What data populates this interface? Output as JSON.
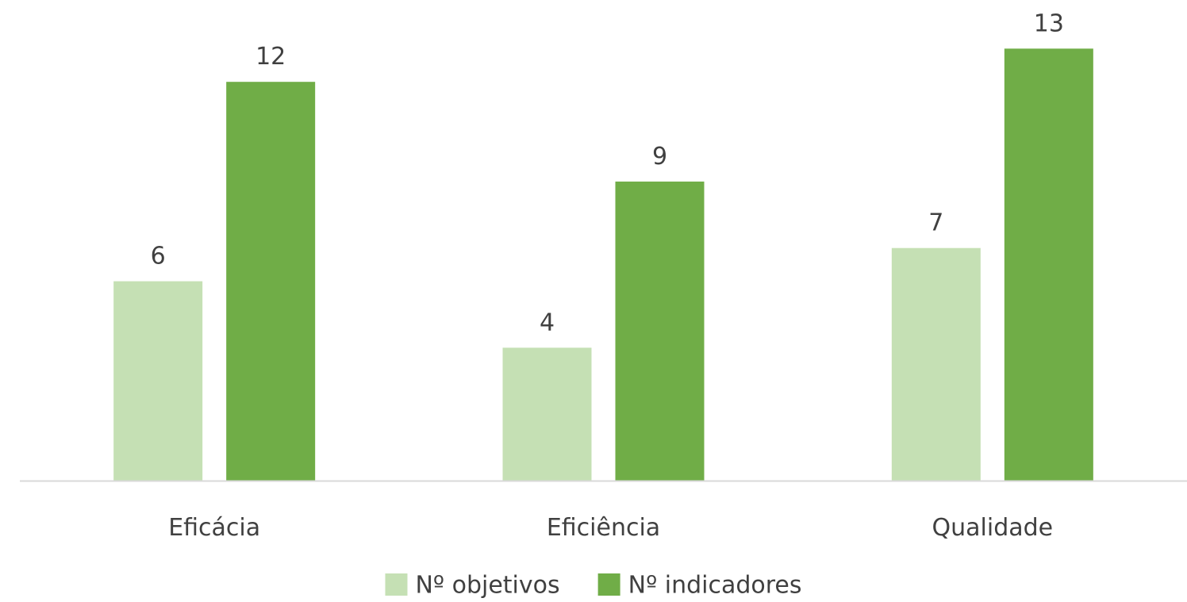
{
  "chart_data": {
    "type": "bar",
    "categories": [
      "Eficácia",
      "Eficiência",
      "Qualidade"
    ],
    "series": [
      {
        "name": "Nº objetivos",
        "values": [
          6,
          4,
          7
        ],
        "color": "#c5e0b4"
      },
      {
        "name": "Nº indicadores",
        "values": [
          12,
          9,
          13
        ],
        "color": "#70ad47"
      }
    ],
    "title": "",
    "xlabel": "",
    "ylabel": "",
    "ylim": [
      0,
      13
    ],
    "grid": false,
    "legend": "bottom",
    "data_labels": true,
    "axis_color": "#d9d9d9"
  }
}
